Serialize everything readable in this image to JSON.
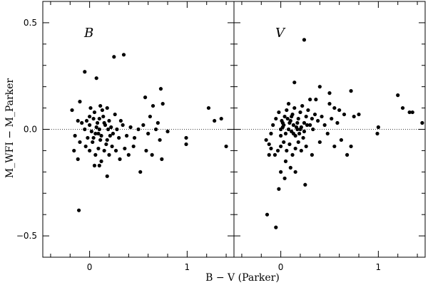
{
  "chart_data": {
    "type": "scatter",
    "xlabel": "B − V (Parker)",
    "ylabel": "M_WFI − M_Parker",
    "xlim": [
      -0.48,
      1.48
    ],
    "ylim": [
      -0.6,
      0.6
    ],
    "x_ticks": [
      0,
      1
    ],
    "y_ticks": [
      -0.5,
      0.0,
      0.5
    ],
    "x_tick_labels": [
      "0",
      "1"
    ],
    "y_tick_labels": [
      "−0.5",
      "0.0",
      "0.5"
    ],
    "reference_line_y": 0,
    "grid": false,
    "legend": "none",
    "panels": [
      {
        "label": "B",
        "points": [
          [
            -0.05,
            0.27
          ],
          [
            0.07,
            0.24
          ],
          [
            0.25,
            0.34
          ],
          [
            0.35,
            0.35
          ],
          [
            -0.1,
            0.13
          ],
          [
            0.01,
            0.1
          ],
          [
            0.11,
            0.11
          ],
          [
            0.18,
            0.1
          ],
          [
            0.57,
            0.15
          ],
          [
            0.73,
            0.19
          ],
          [
            0.65,
            0.11
          ],
          [
            0.75,
            0.12
          ],
          [
            1.22,
            0.1
          ],
          [
            1.28,
            0.04
          ],
          [
            1.35,
            0.05
          ],
          [
            1.4,
            -0.08
          ],
          [
            0.99,
            -0.04
          ],
          [
            0.99,
            -0.07
          ],
          [
            0.8,
            -0.01
          ],
          [
            -0.18,
            0.09
          ],
          [
            -0.12,
            0.04
          ],
          [
            -0.15,
            -0.03
          ],
          [
            -0.08,
            0.03
          ],
          [
            -0.05,
            0.0
          ],
          [
            -0.02,
            -0.04
          ],
          [
            0.0,
            0.02
          ],
          [
            0.02,
            -0.01
          ],
          [
            0.04,
            0.05
          ],
          [
            0.06,
            -0.02
          ],
          [
            0.08,
            0.03
          ],
          [
            0.1,
            0.0
          ],
          [
            0.12,
            -0.03
          ],
          [
            0.14,
            0.06
          ],
          [
            0.16,
            0.02
          ],
          [
            0.18,
            -0.05
          ],
          [
            0.2,
            0.04
          ],
          [
            0.22,
            0.01
          ],
          [
            0.24,
            -0.02
          ],
          [
            0.26,
            0.07
          ],
          [
            0.28,
            0.0
          ],
          [
            0.3,
            -0.04
          ],
          [
            0.32,
            0.04
          ],
          [
            0.34,
            0.02
          ],
          [
            0.38,
            -0.03
          ],
          [
            0.42,
            0.01
          ],
          [
            0.46,
            -0.04
          ],
          [
            0.5,
            0.0
          ],
          [
            0.55,
            0.02
          ],
          [
            0.6,
            -0.02
          ],
          [
            0.62,
            0.06
          ],
          [
            0.68,
            0.0
          ],
          [
            0.72,
            -0.05
          ],
          [
            0.7,
            0.03
          ],
          [
            -0.1,
            -0.06
          ],
          [
            -0.04,
            -0.08
          ],
          [
            0.0,
            -0.1
          ],
          [
            0.03,
            -0.06
          ],
          [
            0.06,
            -0.12
          ],
          [
            0.09,
            -0.09
          ],
          [
            0.12,
            -0.15
          ],
          [
            0.15,
            -0.1
          ],
          [
            0.17,
            -0.07
          ],
          [
            0.2,
            -0.12
          ],
          [
            0.23,
            -0.08
          ],
          [
            0.27,
            -0.1
          ],
          [
            0.31,
            -0.14
          ],
          [
            0.36,
            -0.09
          ],
          [
            0.4,
            -0.12
          ],
          [
            0.45,
            -0.08
          ],
          [
            0.52,
            -0.2
          ],
          [
            0.58,
            -0.1
          ],
          [
            0.64,
            -0.12
          ],
          [
            0.74,
            -0.14
          ],
          [
            -0.16,
            -0.1
          ],
          [
            -0.12,
            -0.14
          ],
          [
            0.05,
            -0.17
          ],
          [
            0.1,
            -0.17
          ],
          [
            0.18,
            -0.22
          ],
          [
            -0.11,
            -0.38
          ],
          [
            0.0,
            0.06
          ],
          [
            0.05,
            0.08
          ],
          [
            0.1,
            0.05
          ],
          [
            0.13,
            0.09
          ],
          [
            -0.03,
            0.04
          ],
          [
            0.07,
            0.01
          ],
          [
            0.11,
            -0.05
          ],
          [
            0.19,
            0.0
          ],
          [
            0.21,
            -0.03
          ],
          [
            0.15,
            0.03
          ],
          [
            0.04,
            -0.04
          ],
          [
            0.09,
            -0.02
          ]
        ]
      },
      {
        "label": "V",
        "points": [
          [
            0.24,
            0.42
          ],
          [
            0.14,
            0.22
          ],
          [
            0.4,
            0.2
          ],
          [
            0.5,
            0.17
          ],
          [
            0.72,
            0.18
          ],
          [
            0.3,
            0.14
          ],
          [
            0.36,
            0.14
          ],
          [
            1.2,
            0.16
          ],
          [
            1.25,
            0.1
          ],
          [
            1.32,
            0.08
          ],
          [
            1.35,
            0.08
          ],
          [
            1.45,
            0.03
          ],
          [
            1.0,
            0.01
          ],
          [
            0.99,
            -0.02
          ],
          [
            0.5,
            0.12
          ],
          [
            0.55,
            0.1
          ],
          [
            0.6,
            0.09
          ],
          [
            0.65,
            0.07
          ],
          [
            0.75,
            0.06
          ],
          [
            0.8,
            0.07
          ],
          [
            0.52,
            0.05
          ],
          [
            0.58,
            0.03
          ],
          [
            0.45,
            0.02
          ],
          [
            0.48,
            -0.02
          ],
          [
            0.55,
            -0.08
          ],
          [
            0.62,
            -0.05
          ],
          [
            0.68,
            -0.12
          ],
          [
            0.72,
            -0.08
          ],
          [
            -0.12,
            -0.07
          ],
          [
            -0.1,
            -0.02
          ],
          [
            -0.08,
            0.02
          ],
          [
            -0.05,
            0.05
          ],
          [
            -0.02,
            0.08
          ],
          [
            0.0,
            0.0
          ],
          [
            0.02,
            0.03
          ],
          [
            0.04,
            0.06
          ],
          [
            0.06,
            0.09
          ],
          [
            0.08,
            0.12
          ],
          [
            0.1,
            0.04
          ],
          [
            0.12,
            0.07
          ],
          [
            0.14,
            0.1
          ],
          [
            0.16,
            0.01
          ],
          [
            0.18,
            0.05
          ],
          [
            0.2,
            0.08
          ],
          [
            0.22,
            0.11
          ],
          [
            0.24,
            0.03
          ],
          [
            0.26,
            0.06
          ],
          [
            0.28,
            0.09
          ],
          [
            0.3,
            0.02
          ],
          [
            0.32,
            0.05
          ],
          [
            0.35,
            0.07
          ],
          [
            0.38,
            0.04
          ],
          [
            0.42,
            0.06
          ],
          [
            0.0,
            -0.03
          ],
          [
            0.02,
            0.01
          ],
          [
            0.05,
            -0.02
          ],
          [
            0.08,
            0.0
          ],
          [
            0.11,
            -0.01
          ],
          [
            0.13,
            0.02
          ],
          [
            0.15,
            -0.03
          ],
          [
            0.17,
            0.0
          ],
          [
            0.19,
            -0.02
          ],
          [
            0.21,
            0.01
          ],
          [
            0.23,
            -0.04
          ],
          [
            -0.1,
            -0.09
          ],
          [
            -0.06,
            -0.12
          ],
          [
            -0.03,
            -0.1
          ],
          [
            0.0,
            -0.08
          ],
          [
            0.03,
            -0.06
          ],
          [
            0.06,
            -0.1
          ],
          [
            0.09,
            -0.07
          ],
          [
            0.12,
            -0.12
          ],
          [
            0.15,
            -0.09
          ],
          [
            0.18,
            -0.06
          ],
          [
            0.21,
            -0.1
          ],
          [
            0.26,
            -0.08
          ],
          [
            0.32,
            -0.12
          ],
          [
            0.4,
            -0.06
          ],
          [
            -0.15,
            -0.05
          ],
          [
            -0.12,
            -0.12
          ],
          [
            0.05,
            -0.15
          ],
          [
            0.1,
            -0.18
          ],
          [
            0.15,
            -0.2
          ],
          [
            0.25,
            -0.26
          ],
          [
            0.0,
            -0.2
          ],
          [
            0.04,
            -0.23
          ],
          [
            -0.02,
            -0.28
          ],
          [
            -0.14,
            -0.4
          ],
          [
            -0.05,
            -0.46
          ],
          [
            0.01,
            0.04
          ],
          [
            0.03,
            0.02
          ],
          [
            0.07,
            0.05
          ],
          [
            0.09,
            0.03
          ],
          [
            0.11,
            0.06
          ],
          [
            0.13,
            -0.02
          ],
          [
            0.17,
            0.03
          ],
          [
            0.2,
            0.0
          ],
          [
            0.24,
            -0.01
          ],
          [
            0.27,
            0.02
          ],
          [
            0.33,
            0.0
          ]
        ]
      }
    ]
  }
}
